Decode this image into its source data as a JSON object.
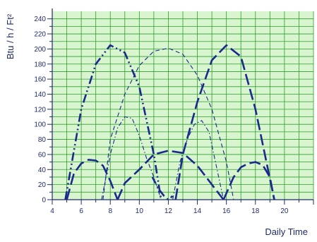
{
  "chart_data": {
    "type": "line",
    "title": "",
    "xlabel": "Daily Time",
    "ylabel": "Btu / h / Ft²",
    "xlim": [
      4,
      22
    ],
    "ylim": [
      0,
      250
    ],
    "x_ticks": [
      4,
      6,
      8,
      10,
      12,
      14,
      16,
      18,
      20
    ],
    "y_ticks": [
      0,
      20,
      40,
      60,
      80,
      100,
      120,
      140,
      160,
      180,
      200,
      220,
      240
    ],
    "grid": true,
    "legend": "none",
    "colors": {
      "background": "#d8f5d0",
      "grid": "#2e9e2e",
      "axis": "#1f2a6b",
      "line": "#1a2a8a"
    },
    "series": [
      {
        "style": "dash-dot-dot",
        "weight": "heavy",
        "x": [
          4.9,
          6,
          7,
          8,
          9,
          10,
          11,
          11.5
        ],
        "y": [
          0,
          120,
          180,
          205,
          195,
          150,
          60,
          0
        ]
      },
      {
        "style": "dash",
        "weight": "heavy",
        "x": [
          12.5,
          13,
          14,
          15,
          16,
          17,
          18,
          19.3
        ],
        "y": [
          0,
          60,
          130,
          185,
          205,
          190,
          120,
          0
        ]
      },
      {
        "style": "dash",
        "weight": "light",
        "x": [
          7.5,
          8,
          9,
          10,
          11,
          12,
          13,
          14,
          15,
          16,
          16.5
        ],
        "y": [
          0,
          80,
          140,
          178,
          197,
          201,
          193,
          165,
          120,
          50,
          0
        ]
      },
      {
        "style": "dash-dot",
        "weight": "light",
        "x": [
          7.4,
          8,
          8.5,
          9,
          9.5,
          10,
          10.5,
          11,
          11.5
        ],
        "y": [
          0,
          60,
          95,
          110,
          108,
          85,
          55,
          30,
          0
        ]
      },
      {
        "style": "dash-dot",
        "weight": "light",
        "x": [
          12.3,
          12.8,
          13.3,
          13.8,
          14.3,
          14.8,
          15.3,
          15.8
        ],
        "y": [
          0,
          50,
          80,
          100,
          105,
          90,
          45,
          0
        ]
      },
      {
        "style": "dash",
        "weight": "heavy",
        "x": [
          5,
          5.5,
          6,
          6.5,
          7,
          7.5,
          8,
          8.5
        ],
        "y": [
          0,
          35,
          48,
          53,
          52,
          45,
          25,
          0
        ]
      },
      {
        "style": "dash",
        "weight": "heavy",
        "x": [
          8.5,
          9,
          10,
          11,
          12,
          13,
          14,
          15,
          15.8
        ],
        "y": [
          0,
          22,
          40,
          60,
          65,
          62,
          45,
          20,
          0
        ]
      },
      {
        "style": "dash",
        "weight": "heavy",
        "x": [
          15.8,
          16.5,
          17,
          17.5,
          18,
          18.5,
          19,
          19.3
        ],
        "y": [
          0,
          30,
          43,
          48,
          50,
          46,
          30,
          0
        ]
      },
      {
        "style": "dash-dot",
        "weight": "heavy",
        "x": [
          10.9,
          11.3,
          11.7,
          12,
          12.3
        ],
        "y": [
          30,
          15,
          5,
          0,
          5
        ]
      }
    ]
  }
}
